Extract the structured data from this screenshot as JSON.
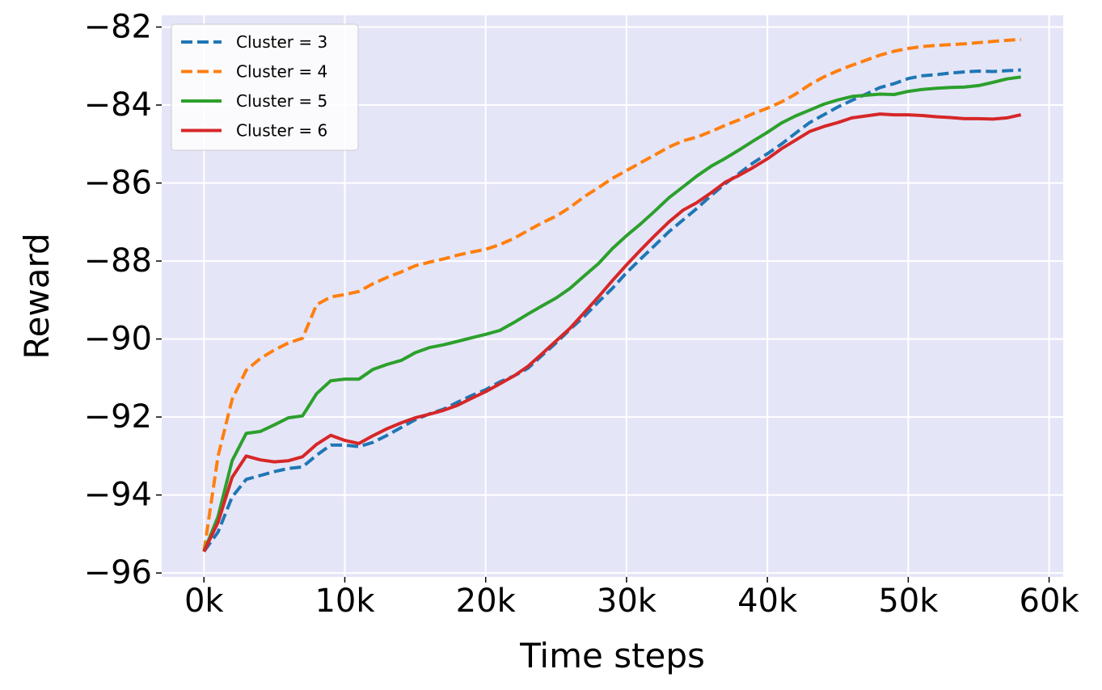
{
  "chart_data": {
    "type": "line",
    "xlabel": "Time steps",
    "ylabel": "Reward",
    "xlim": [
      -3000,
      61000
    ],
    "ylim": [
      -96.1,
      -81.7
    ],
    "x_ticks": [
      0,
      10000,
      20000,
      30000,
      40000,
      50000,
      60000
    ],
    "x_tick_labels": [
      "0k",
      "10k",
      "20k",
      "30k",
      "40k",
      "50k",
      "60k"
    ],
    "y_ticks": [
      -96,
      -94,
      -92,
      -90,
      -88,
      -86,
      -84,
      -82
    ],
    "y_tick_labels": [
      "−96",
      "−94",
      "−92",
      "−90",
      "−88",
      "−86",
      "−84",
      "−82"
    ],
    "grid": true,
    "legend_position": "top-left",
    "plot_background": "#e5e5f8",
    "x": [
      0,
      1000,
      2000,
      3000,
      4000,
      5000,
      6000,
      7000,
      8000,
      9000,
      10000,
      11000,
      12000,
      13000,
      14000,
      15000,
      16000,
      17000,
      18000,
      19000,
      20000,
      21000,
      22000,
      23000,
      24000,
      25000,
      26000,
      27000,
      28000,
      29000,
      30000,
      31000,
      32000,
      33000,
      34000,
      35000,
      36000,
      37000,
      38000,
      39000,
      40000,
      41000,
      42000,
      43000,
      44000,
      45000,
      46000,
      47000,
      48000,
      49000,
      50000,
      51000,
      52000,
      53000,
      54000,
      55000,
      56000,
      57000,
      58000
    ],
    "series": [
      {
        "name": "Cluster = 3",
        "color": "#1f77b4",
        "style": "dashed",
        "values": [
          -95.45,
          -94.95,
          -94.05,
          -93.6,
          -93.5,
          -93.4,
          -93.32,
          -93.28,
          -92.98,
          -92.72,
          -92.72,
          -92.76,
          -92.65,
          -92.47,
          -92.27,
          -92.07,
          -91.92,
          -91.8,
          -91.62,
          -91.45,
          -91.3,
          -91.1,
          -90.95,
          -90.75,
          -90.42,
          -90.1,
          -89.75,
          -89.42,
          -89.05,
          -88.7,
          -88.3,
          -87.95,
          -87.6,
          -87.25,
          -86.95,
          -86.65,
          -86.32,
          -86.02,
          -85.75,
          -85.48,
          -85.25,
          -85.0,
          -84.72,
          -84.45,
          -84.25,
          -84.05,
          -83.88,
          -83.72,
          -83.55,
          -83.45,
          -83.32,
          -83.25,
          -83.22,
          -83.18,
          -83.15,
          -83.13,
          -83.14,
          -83.12,
          -83.1
        ]
      },
      {
        "name": "Cluster = 4",
        "color": "#ff7f0e",
        "style": "dashed",
        "values": [
          -95.45,
          -93.0,
          -91.55,
          -90.8,
          -90.5,
          -90.28,
          -90.1,
          -89.98,
          -89.12,
          -88.92,
          -88.86,
          -88.78,
          -88.58,
          -88.42,
          -88.28,
          -88.12,
          -88.03,
          -87.95,
          -87.85,
          -87.77,
          -87.7,
          -87.58,
          -87.42,
          -87.22,
          -87.02,
          -86.85,
          -86.62,
          -86.35,
          -86.12,
          -85.88,
          -85.68,
          -85.48,
          -85.28,
          -85.08,
          -84.92,
          -84.82,
          -84.68,
          -84.52,
          -84.38,
          -84.22,
          -84.08,
          -83.92,
          -83.72,
          -83.48,
          -83.28,
          -83.12,
          -82.98,
          -82.85,
          -82.72,
          -82.62,
          -82.55,
          -82.5,
          -82.47,
          -82.45,
          -82.43,
          -82.4,
          -82.37,
          -82.34,
          -82.32
        ]
      },
      {
        "name": "Cluster = 5",
        "color": "#2ca02c",
        "style": "solid",
        "values": [
          -95.45,
          -94.55,
          -93.12,
          -92.42,
          -92.37,
          -92.2,
          -92.02,
          -91.97,
          -91.4,
          -91.07,
          -91.03,
          -91.03,
          -90.78,
          -90.65,
          -90.55,
          -90.35,
          -90.22,
          -90.15,
          -90.06,
          -89.97,
          -89.88,
          -89.78,
          -89.58,
          -89.36,
          -89.15,
          -88.95,
          -88.7,
          -88.38,
          -88.07,
          -87.68,
          -87.35,
          -87.05,
          -86.72,
          -86.38,
          -86.1,
          -85.82,
          -85.57,
          -85.37,
          -85.15,
          -84.92,
          -84.7,
          -84.46,
          -84.28,
          -84.13,
          -83.98,
          -83.87,
          -83.78,
          -83.75,
          -83.72,
          -83.73,
          -83.65,
          -83.6,
          -83.57,
          -83.55,
          -83.54,
          -83.5,
          -83.42,
          -83.33,
          -83.28
        ]
      },
      {
        "name": "Cluster = 6",
        "color": "#d62728",
        "style": "solid",
        "values": [
          -95.45,
          -94.7,
          -93.55,
          -93.0,
          -93.1,
          -93.15,
          -93.12,
          -93.02,
          -92.7,
          -92.47,
          -92.6,
          -92.68,
          -92.48,
          -92.3,
          -92.15,
          -92.02,
          -91.93,
          -91.83,
          -91.7,
          -91.52,
          -91.35,
          -91.15,
          -90.95,
          -90.7,
          -90.38,
          -90.05,
          -89.72,
          -89.32,
          -88.92,
          -88.5,
          -88.1,
          -87.72,
          -87.35,
          -87.0,
          -86.7,
          -86.5,
          -86.25,
          -85.98,
          -85.8,
          -85.6,
          -85.38,
          -85.12,
          -84.9,
          -84.68,
          -84.55,
          -84.45,
          -84.33,
          -84.28,
          -84.23,
          -84.25,
          -84.25,
          -84.27,
          -84.3,
          -84.32,
          -84.35,
          -84.35,
          -84.36,
          -84.33,
          -84.25
        ]
      }
    ]
  }
}
